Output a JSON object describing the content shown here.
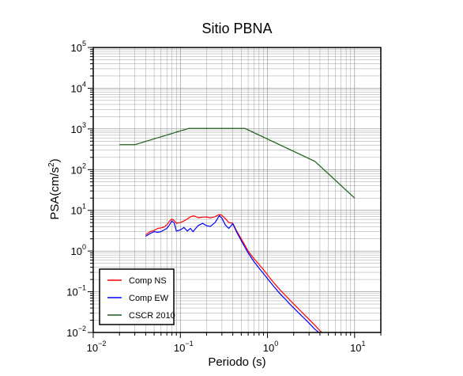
{
  "chart_data": {
    "type": "line",
    "title": "Sitio PBNA",
    "xlabel": "Periodo (s)",
    "ylabel_main": "PSA(cm/s",
    "ylabel_sup": "2",
    "ylabel_close": ")",
    "x_scale": "log",
    "y_scale": "log",
    "xlim": [
      0.01,
      20
    ],
    "ylim": [
      0.01,
      100000
    ],
    "grid": true,
    "legend_position": "bottom-left",
    "x_ticks": [
      {
        "base": "10",
        "exp": "−2"
      },
      {
        "base": "10",
        "exp": "−1"
      },
      {
        "base": "10",
        "exp": "0"
      },
      {
        "base": "10",
        "exp": "1"
      }
    ],
    "y_ticks": [
      {
        "base": "10",
        "exp": "−2"
      },
      {
        "base": "10",
        "exp": "−1"
      },
      {
        "base": "10",
        "exp": "0"
      },
      {
        "base": "10",
        "exp": "1"
      },
      {
        "base": "10",
        "exp": "2"
      },
      {
        "base": "10",
        "exp": "3"
      },
      {
        "base": "10",
        "exp": "4"
      },
      {
        "base": "10",
        "exp": "5"
      }
    ],
    "series": [
      {
        "name": "Comp NS",
        "color": "#ff0000",
        "points": [
          [
            0.04,
            2.5
          ],
          [
            0.045,
            3.0
          ],
          [
            0.05,
            3.2
          ],
          [
            0.055,
            3.6
          ],
          [
            0.06,
            3.7
          ],
          [
            0.065,
            3.9
          ],
          [
            0.07,
            4.4
          ],
          [
            0.075,
            5.4
          ],
          [
            0.08,
            6.1
          ],
          [
            0.085,
            5.6
          ],
          [
            0.09,
            4.8
          ],
          [
            0.1,
            5.0
          ],
          [
            0.11,
            5.5
          ],
          [
            0.12,
            6.1
          ],
          [
            0.13,
            6.9
          ],
          [
            0.14,
            7.3
          ],
          [
            0.15,
            7.1
          ],
          [
            0.16,
            6.6
          ],
          [
            0.18,
            6.8
          ],
          [
            0.2,
            6.9
          ],
          [
            0.22,
            6.5
          ],
          [
            0.25,
            7.0
          ],
          [
            0.28,
            7.9
          ],
          [
            0.3,
            7.5
          ],
          [
            0.33,
            6.2
          ],
          [
            0.36,
            5.0
          ],
          [
            0.4,
            4.8
          ],
          [
            0.44,
            3.2
          ],
          [
            0.5,
            2.0
          ],
          [
            0.55,
            1.4
          ],
          [
            0.6,
            1.0
          ],
          [
            0.7,
            0.65
          ],
          [
            0.8,
            0.47
          ],
          [
            0.9,
            0.35
          ],
          [
            1.0,
            0.26
          ],
          [
            1.2,
            0.16
          ],
          [
            1.4,
            0.11
          ],
          [
            1.6,
            0.082
          ],
          [
            1.8,
            0.063
          ],
          [
            2.0,
            0.05
          ],
          [
            2.5,
            0.031
          ],
          [
            3.0,
            0.021
          ],
          [
            3.5,
            0.015
          ],
          [
            4.0,
            0.011
          ],
          [
            4.2,
            0.01
          ]
        ]
      },
      {
        "name": "Comp EW",
        "color": "#0000ff",
        "points": [
          [
            0.04,
            2.3
          ],
          [
            0.045,
            2.7
          ],
          [
            0.05,
            3.0
          ],
          [
            0.055,
            2.9
          ],
          [
            0.06,
            3.0
          ],
          [
            0.065,
            3.3
          ],
          [
            0.07,
            3.6
          ],
          [
            0.075,
            4.4
          ],
          [
            0.08,
            5.5
          ],
          [
            0.085,
            4.9
          ],
          [
            0.09,
            3.1
          ],
          [
            0.1,
            3.3
          ],
          [
            0.11,
            3.8
          ],
          [
            0.12,
            3.1
          ],
          [
            0.13,
            3.6
          ],
          [
            0.14,
            3.0
          ],
          [
            0.15,
            3.6
          ],
          [
            0.16,
            4.2
          ],
          [
            0.18,
            4.8
          ],
          [
            0.2,
            4.2
          ],
          [
            0.22,
            4.0
          ],
          [
            0.25,
            5.0
          ],
          [
            0.28,
            7.4
          ],
          [
            0.3,
            6.4
          ],
          [
            0.33,
            4.3
          ],
          [
            0.36,
            3.6
          ],
          [
            0.4,
            4.7
          ],
          [
            0.44,
            3.0
          ],
          [
            0.5,
            1.8
          ],
          [
            0.55,
            1.25
          ],
          [
            0.6,
            0.9
          ],
          [
            0.7,
            0.55
          ],
          [
            0.8,
            0.38
          ],
          [
            0.9,
            0.28
          ],
          [
            1.0,
            0.21
          ],
          [
            1.2,
            0.13
          ],
          [
            1.4,
            0.088
          ],
          [
            1.6,
            0.066
          ],
          [
            1.8,
            0.05
          ],
          [
            2.0,
            0.04
          ],
          [
            2.5,
            0.025
          ],
          [
            3.0,
            0.017
          ],
          [
            3.5,
            0.012
          ],
          [
            4.0,
            0.0095
          ]
        ]
      },
      {
        "name": "CSCR 2010",
        "color": "#1a5e1a",
        "points": [
          [
            0.02,
            410
          ],
          [
            0.03,
            410
          ],
          [
            0.125,
            1030
          ],
          [
            0.55,
            1030
          ],
          [
            3.5,
            160
          ],
          [
            10,
            20
          ]
        ]
      }
    ]
  }
}
